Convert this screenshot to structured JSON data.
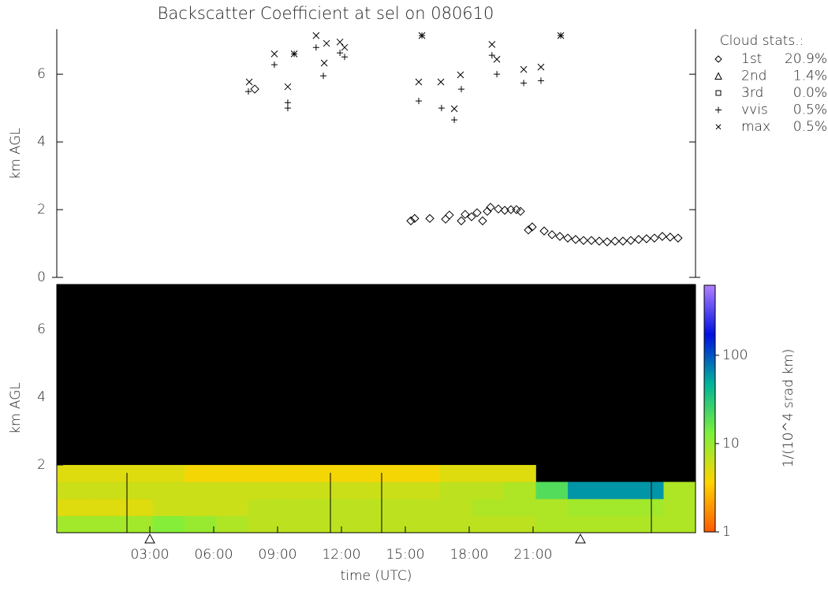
{
  "chart_data": [
    {
      "type": "scatter",
      "title": "Backscatter Coefficient at sel on 080610",
      "y_label": "km AGL",
      "legend_title": "Cloud stats.:",
      "xlim": [
        -1.37,
        28.63
      ],
      "ylim": [
        0,
        7.33
      ],
      "yticks": [
        0,
        2,
        4,
        6
      ],
      "series": [
        {
          "name": "1st",
          "stat_label": "20.9%",
          "marker": "diamond",
          "color": "#000000",
          "x": [
            7.93,
            15.26,
            15.44,
            16.15,
            16.89,
            17.07,
            17.63,
            17.81,
            18.11,
            18.37,
            18.63,
            18.85,
            19.0,
            19.37,
            19.67,
            19.96,
            20.22,
            20.41,
            20.78,
            20.96,
            21.52,
            21.89,
            22.26,
            22.63,
            23.0,
            23.37,
            23.74,
            24.11,
            24.48,
            24.85,
            25.22,
            25.59,
            25.96,
            26.33,
            26.7,
            27.07,
            27.44,
            27.81
          ],
          "y": [
            5.56,
            1.67,
            1.74,
            1.74,
            1.72,
            1.84,
            1.67,
            1.86,
            1.79,
            1.91,
            1.67,
            1.95,
            2.07,
            2.02,
            1.98,
            2.0,
            2.0,
            1.95,
            1.4,
            1.49,
            1.37,
            1.26,
            1.21,
            1.16,
            1.12,
            1.09,
            1.09,
            1.07,
            1.05,
            1.07,
            1.07,
            1.09,
            1.12,
            1.14,
            1.16,
            1.21,
            1.19,
            1.16
          ]
        },
        {
          "name": "2nd",
          "stat_label": "1.4%",
          "marker": "triangle",
          "color": "#000000",
          "x": [],
          "y": []
        },
        {
          "name": "3rd",
          "stat_label": "0.0%",
          "marker": "square",
          "color": "#000000",
          "x": [],
          "y": []
        },
        {
          "name": "vvis",
          "stat_label": "0.5%",
          "marker": "plus",
          "color": "#000000",
          "x": [
            7.63,
            8.85,
            9.48,
            9.48,
            9.78,
            10.81,
            11.15,
            11.93,
            12.15,
            15.63,
            15.78,
            16.7,
            17.3,
            17.63,
            19.07,
            19.3,
            20.56,
            21.37,
            22.3
          ],
          "y": [
            5.49,
            6.28,
            5.16,
            5.0,
            6.6,
            6.79,
            5.95,
            6.63,
            6.51,
            5.21,
            7.14,
            5.0,
            4.65,
            5.56,
            6.56,
            6.0,
            5.74,
            5.81,
            7.14
          ]
        },
        {
          "name": "max",
          "stat_label": "0.5%",
          "marker": "cross",
          "color": "#000000",
          "x": [
            7.67,
            8.85,
            9.48,
            9.78,
            10.81,
            11.3,
            11.19,
            11.93,
            12.15,
            15.63,
            15.78,
            16.67,
            17.3,
            17.59,
            19.07,
            19.3,
            20.56,
            21.37,
            22.3
          ],
          "y": [
            5.77,
            6.6,
            5.63,
            6.6,
            7.14,
            6.91,
            6.33,
            6.95,
            6.79,
            5.77,
            7.14,
            5.77,
            4.98,
            5.98,
            6.88,
            6.44,
            6.14,
            6.21,
            7.14
          ]
        }
      ]
    },
    {
      "type": "heatmap",
      "x_label": "time (UTC)",
      "y_label": "km AGL",
      "colorbar_label": "1/(10^4 srad km)",
      "xlim": [
        -1.37,
        28.63
      ],
      "ylim": [
        0,
        7.33
      ],
      "xticks": [
        {
          "value": 3,
          "label": "03:00"
        },
        {
          "value": 6,
          "label": "06:00"
        },
        {
          "value": 9,
          "label": "09:00"
        },
        {
          "value": 12,
          "label": "12:00"
        },
        {
          "value": 15,
          "label": "15:00"
        },
        {
          "value": 18,
          "label": "18:00"
        },
        {
          "value": 21,
          "label": "21:00"
        }
      ],
      "yticks": [
        2,
        4,
        6
      ],
      "zlim": [
        1,
        620
      ],
      "zticks": [
        1,
        10,
        100
      ],
      "log_color": true,
      "colorscale": [
        "#ff5a00",
        "#ffd400",
        "#7cf03c",
        "#00b49a",
        "#0010e0",
        "#b080ff"
      ],
      "x_edges": [
        -1.37,
        0.13,
        1.63,
        3.13,
        4.63,
        6.13,
        7.63,
        9.13,
        10.63,
        12.13,
        13.63,
        15.13,
        16.63,
        18.13,
        19.63,
        21.13,
        22.63,
        24.13,
        25.63,
        27.13,
        28.63
      ],
      "y_edges": [
        0,
        0.5,
        1,
        1.5,
        2
      ],
      "z": [
        [
          9,
          9,
          9,
          12,
          10,
          8,
          7,
          7,
          7,
          7,
          7,
          7,
          7,
          7,
          7,
          8,
          8,
          8,
          8,
          8
        ],
        [
          5,
          5,
          5,
          6,
          6,
          6,
          7,
          7,
          7,
          7,
          7,
          7,
          7,
          8,
          8,
          8,
          9,
          9,
          9,
          8
        ],
        [
          6,
          6,
          6,
          6,
          6,
          6,
          6,
          6,
          6,
          6,
          6,
          6,
          7,
          7,
          8,
          20,
          60,
          60,
          60,
          8
        ],
        [
          5,
          5,
          5,
          5,
          4,
          4,
          4,
          4,
          4,
          4,
          4,
          4,
          5,
          5,
          5,
          null,
          null,
          null,
          null,
          null
        ]
      ]
    }
  ]
}
